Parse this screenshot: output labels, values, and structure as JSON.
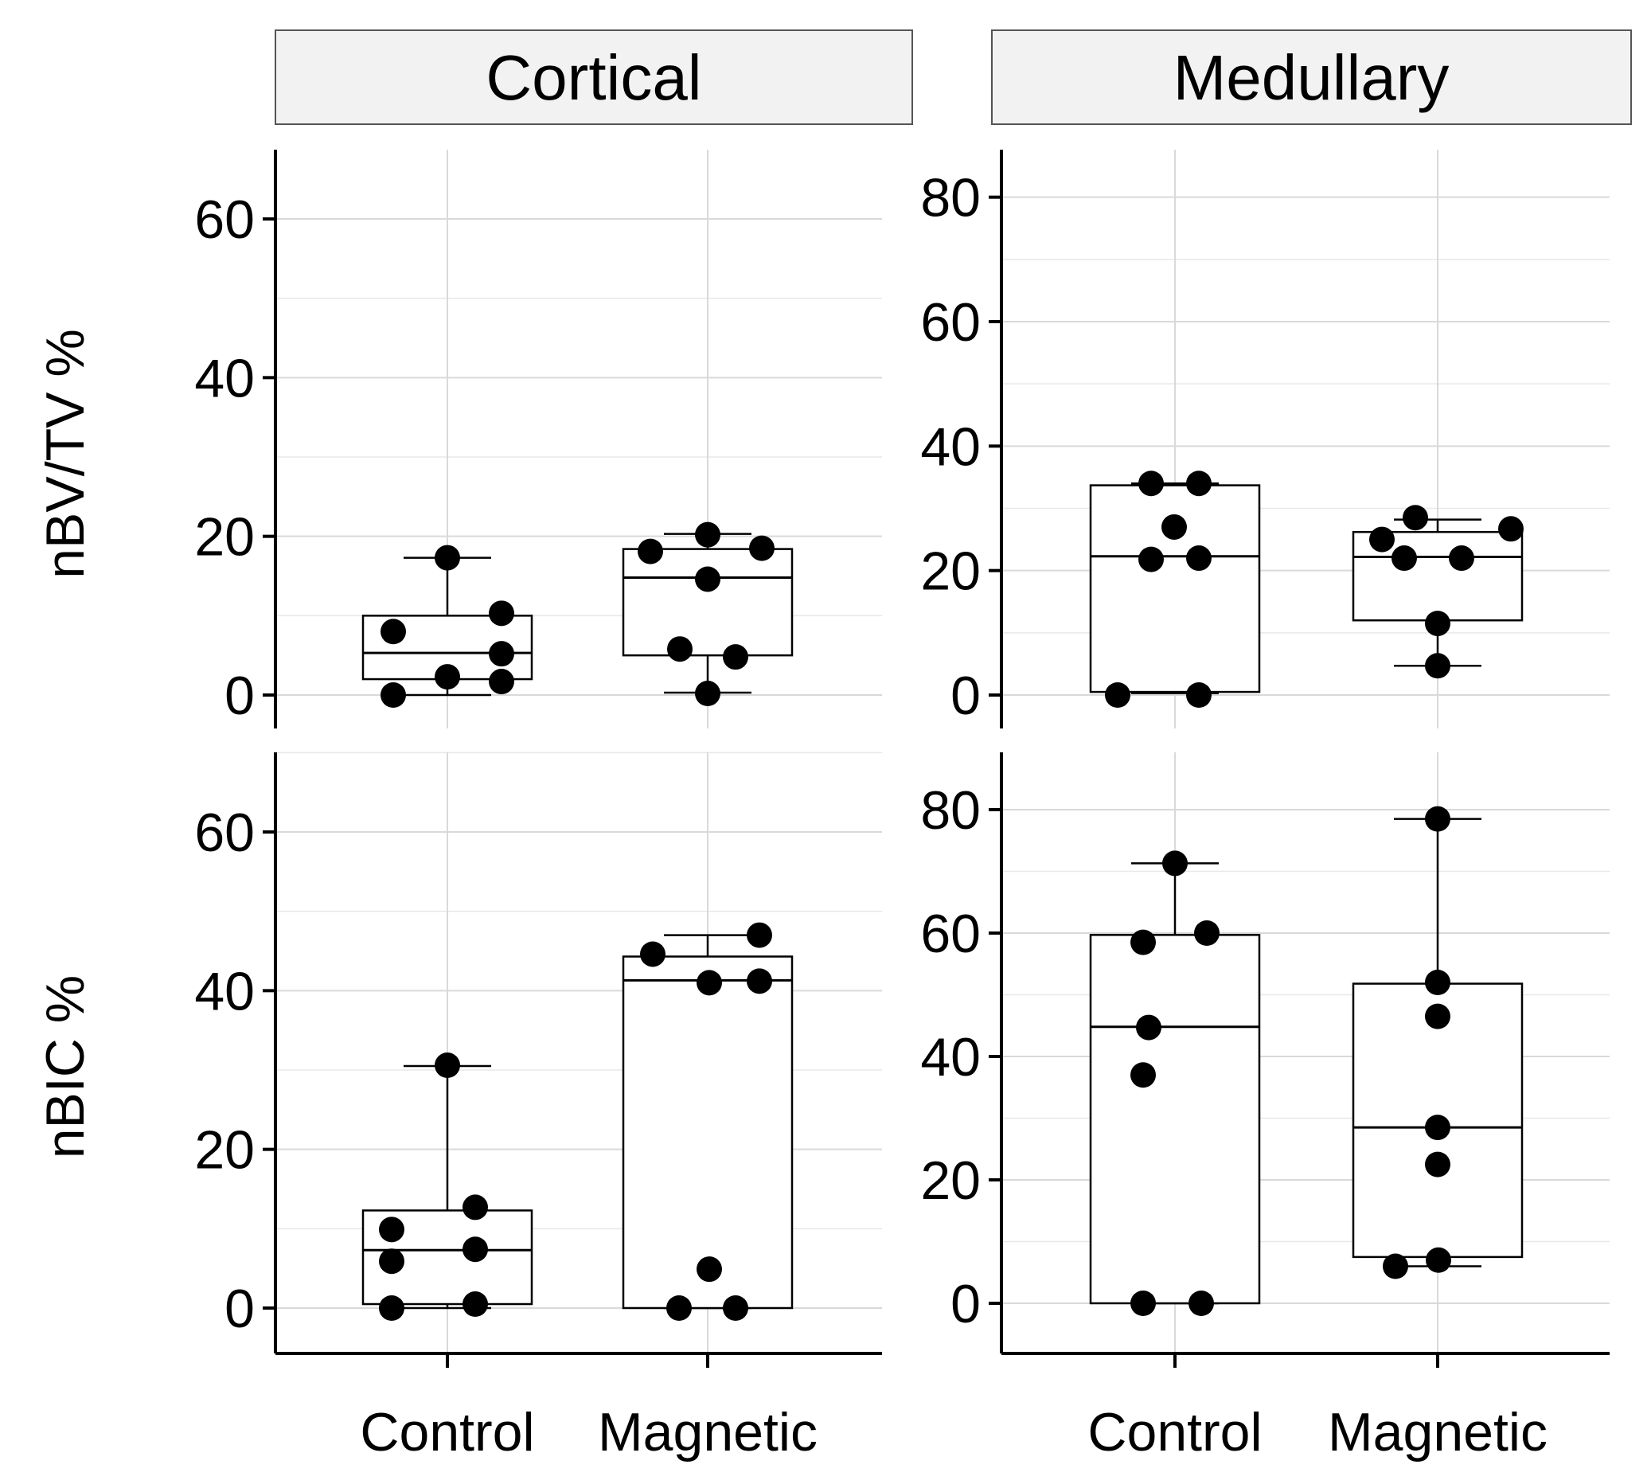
{
  "chart_data": {
    "type": "box",
    "layout": "2x2 facet grid",
    "facets": [
      "Cortical",
      "Medullary"
    ],
    "categories": [
      "Control",
      "Magnetic"
    ],
    "panels": [
      {
        "id": "cortical-nbvtv",
        "facet": "Cortical",
        "ylabel": "nBV/TV %",
        "ylim": [
          -4,
          68
        ],
        "yticks": [
          "0",
          "20",
          "40",
          "60"
        ],
        "groups": [
          {
            "name": "Control",
            "min": 0,
            "q1": 2,
            "median": 5.3,
            "q3": 10,
            "max": 17.3,
            "points": [
              0,
              8,
              2.3,
              1.7,
              5.2,
              10.3,
              17.3
            ]
          },
          {
            "name": "Magnetic",
            "min": 0.3,
            "q1": 5,
            "median": 14.8,
            "q3": 18.4,
            "max": 20.3,
            "points": [
              18.1,
              5.8,
              20.2,
              14.6,
              0.2,
              4.8,
              18.5
            ]
          }
        ]
      },
      {
        "id": "medullary-nbvtv",
        "facet": "Medullary",
        "ylabel": "",
        "ylim": [
          -6,
          88
        ],
        "yticks": [
          "0",
          "20",
          "40",
          "60",
          "80"
        ],
        "groups": [
          {
            "name": "Control",
            "min": 0.3,
            "q1": 0.5,
            "median": 22.3,
            "q3": 33.7,
            "max": 34,
            "points": [
              0,
              21.8,
              34,
              27,
              0,
              22,
              34
            ]
          },
          {
            "name": "Magnetic",
            "min": 4.7,
            "q1": 12,
            "median": 22.2,
            "q3": 26.2,
            "max": 28.2,
            "points": [
              25,
              22,
              28.5,
              11.5,
              4.7,
              22,
              26.7
            ]
          }
        ]
      },
      {
        "id": "cortical-nbic",
        "facet": "Cortical",
        "ylabel": "nBIC %",
        "ylim": [
          -6,
          70
        ],
        "yticks": [
          "0",
          "20",
          "40",
          "60"
        ],
        "groups": [
          {
            "name": "Control",
            "min": 0,
            "q1": 0.5,
            "median": 7.3,
            "q3": 12.3,
            "max": 30.5,
            "points": [
              0,
              9.9,
              5.9,
              0.5,
              7.4,
              12.7,
              30.6
            ]
          },
          {
            "name": "Magnetic",
            "min": 0,
            "q1": 0,
            "median": 41.3,
            "q3": 44.3,
            "max": 47,
            "points": [
              0,
              44.6,
              41,
              4.9,
              0,
              41.2,
              47
            ]
          }
        ]
      },
      {
        "id": "medullary-nbic",
        "facet": "Medullary",
        "ylabel": "",
        "ylim": [
          -8,
          90
        ],
        "yticks": [
          "0",
          "20",
          "40",
          "60",
          "80"
        ],
        "groups": [
          {
            "name": "Control",
            "min": 0,
            "q1": 0,
            "median": 44.8,
            "q3": 59.7,
            "max": 71.3,
            "points": [
              0,
              58.5,
              37,
              44.7,
              71.3,
              0,
              60
            ]
          },
          {
            "name": "Magnetic",
            "min": 6,
            "q1": 7.5,
            "median": 28.5,
            "q3": 51.8,
            "max": 78.5,
            "points": [
              6,
              46.5,
              52,
              28.5,
              22.5,
              78.5,
              7
            ]
          }
        ]
      }
    ]
  }
}
